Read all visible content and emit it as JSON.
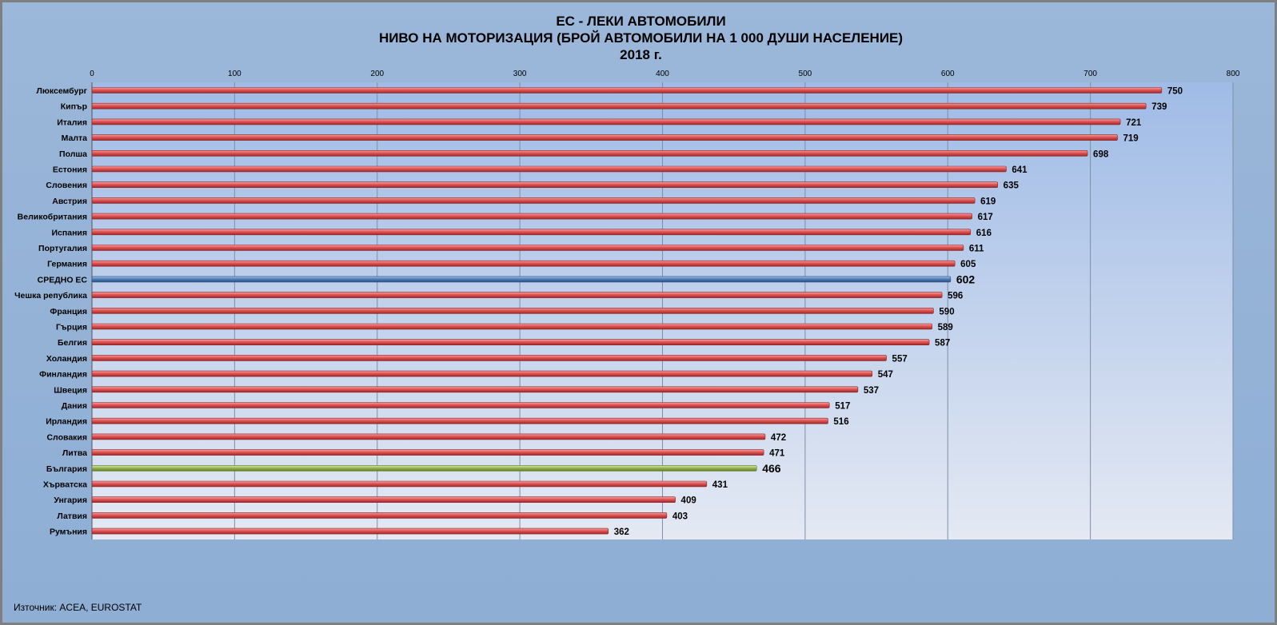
{
  "chart_data": {
    "type": "bar",
    "orientation": "horizontal",
    "title": [
      "ЕС - ЛЕКИ АВТОМОБИЛИ",
      "НИВО НА МОТОРИЗАЦИЯ (БРОЙ АВТОМОБИЛИ НА 1 000 ДУШИ НАСЕЛЕНИЕ)",
      "2018 г."
    ],
    "xlim": [
      0,
      800
    ],
    "xticks": [
      "0",
      "100",
      "200",
      "300",
      "400",
      "500",
      "600",
      "700",
      "800"
    ],
    "tick_values": [
      0,
      100,
      200,
      300,
      400,
      500,
      600,
      700,
      800
    ],
    "grid": true,
    "categories": [
      "Люксембург",
      "Кипър",
      "Италия",
      "Малта",
      "Полша",
      "Естония",
      "Словения",
      "Австрия",
      "Великобритания",
      "Испания",
      "Португалия",
      "Германия",
      "СРЕДНО ЕС",
      "Чешка република",
      "Франция",
      "Гърция",
      "Белгия",
      "Холандия",
      "Финландия",
      "Швеция",
      "Дания",
      "Ирландия",
      "Словакия",
      "Литва",
      "България",
      "Хърватска",
      "Унгария",
      "Латвия",
      "Румъния"
    ],
    "values": [
      750,
      739,
      721,
      719,
      698,
      641,
      635,
      619,
      617,
      616,
      611,
      605,
      602,
      596,
      590,
      589,
      587,
      557,
      547,
      537,
      517,
      516,
      472,
      471,
      466,
      431,
      409,
      403,
      362
    ],
    "highlight": {
      "СРЕДНО ЕС": "#4f81bd",
      "България": "#9bbb59"
    },
    "default_color": "#e05555"
  },
  "source": "Източник: ACEA, EUROSTAT"
}
